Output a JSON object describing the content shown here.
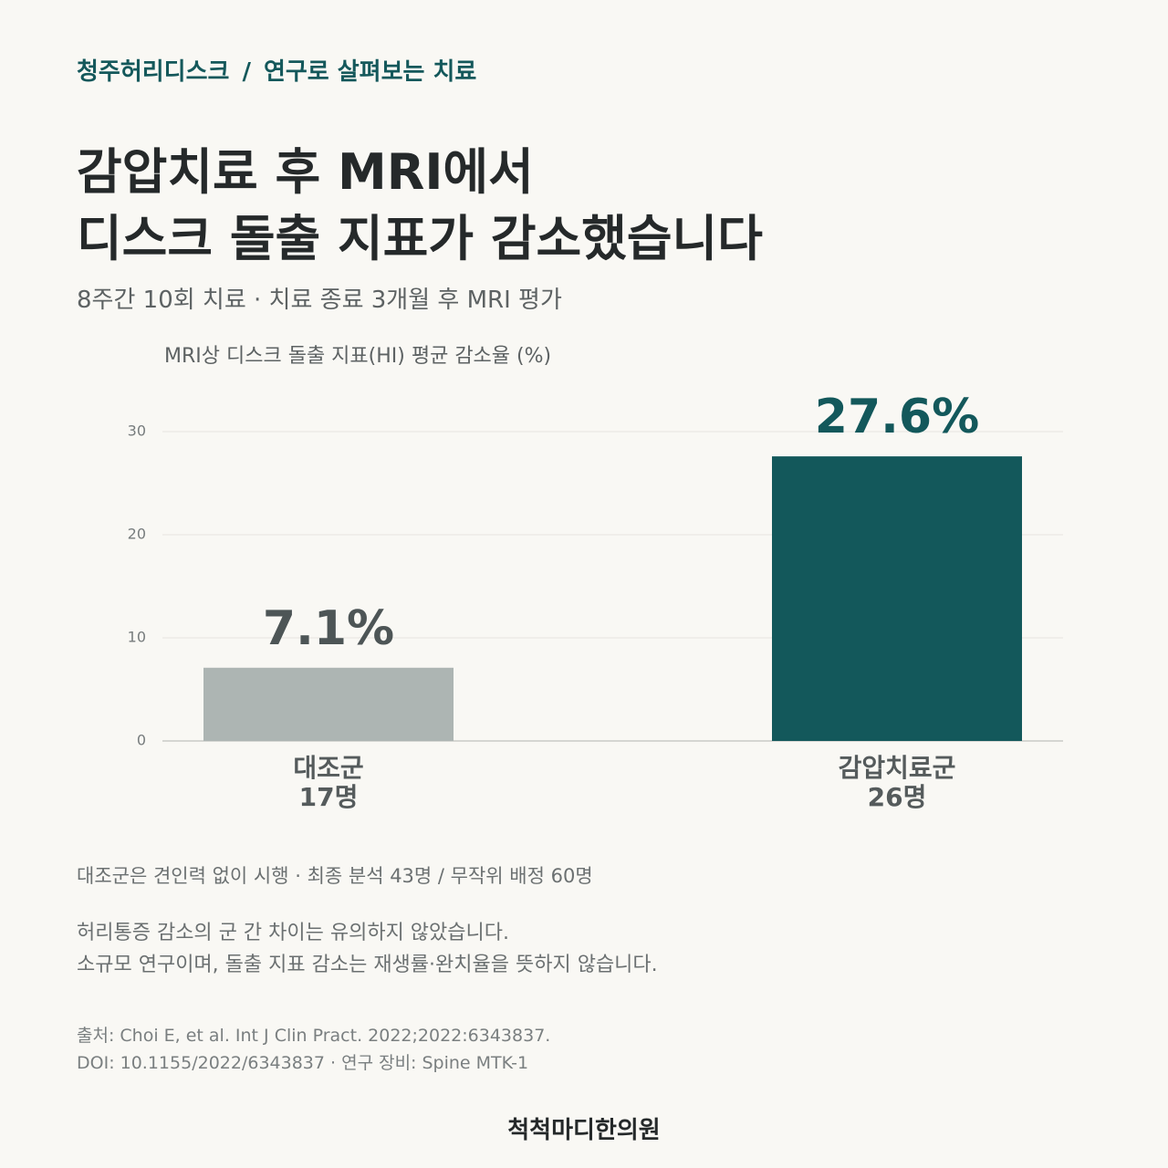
{
  "header": {
    "brand": "청주허리디스크",
    "separator": "/",
    "section": "연구로 살펴보는 치료"
  },
  "chart_data": {
    "type": "bar",
    "title": [
      "감압치료 후 MRI에서",
      "디스크 돌출 지표가 감소했습니다"
    ],
    "subtitle": "8주간 10회 치료 · 치료 종료 3개월 후 MRI 평가",
    "y_label": "MRI상 디스크 돌출 지표(HI) 평균 감소율 (%)",
    "categories": [
      "대조군",
      "감압치료군"
    ],
    "group_sizes": [
      "17명",
      "26명"
    ],
    "values": [
      7.1,
      27.6
    ],
    "value_labels": [
      "7.1%",
      "27.6%"
    ],
    "colors": [
      "#adb5b3",
      "#13585b"
    ],
    "ylim": [
      0,
      30
    ],
    "yticks": [
      0,
      10,
      20,
      30
    ],
    "grid": true
  },
  "notes": {
    "design": "대조군은 견인력 없이 시행 · 최종 분석 43명 / 무작위 배정 60명",
    "caveats": [
      "허리통증 감소의 군 간 차이는 유의하지 않았습니다.",
      "소규모 연구이며, 돌출 지표 감소는 재생률·완치율을 뜻하지 않습니다."
    ]
  },
  "source": [
    "출처: Choi E, et al. Int J Clin Pract. 2022;2022:6343837.",
    "DOI: 10.1155/2022/6343837 · 연구 장비: Spine MTK-1"
  ],
  "footer": "척척마디한의원"
}
